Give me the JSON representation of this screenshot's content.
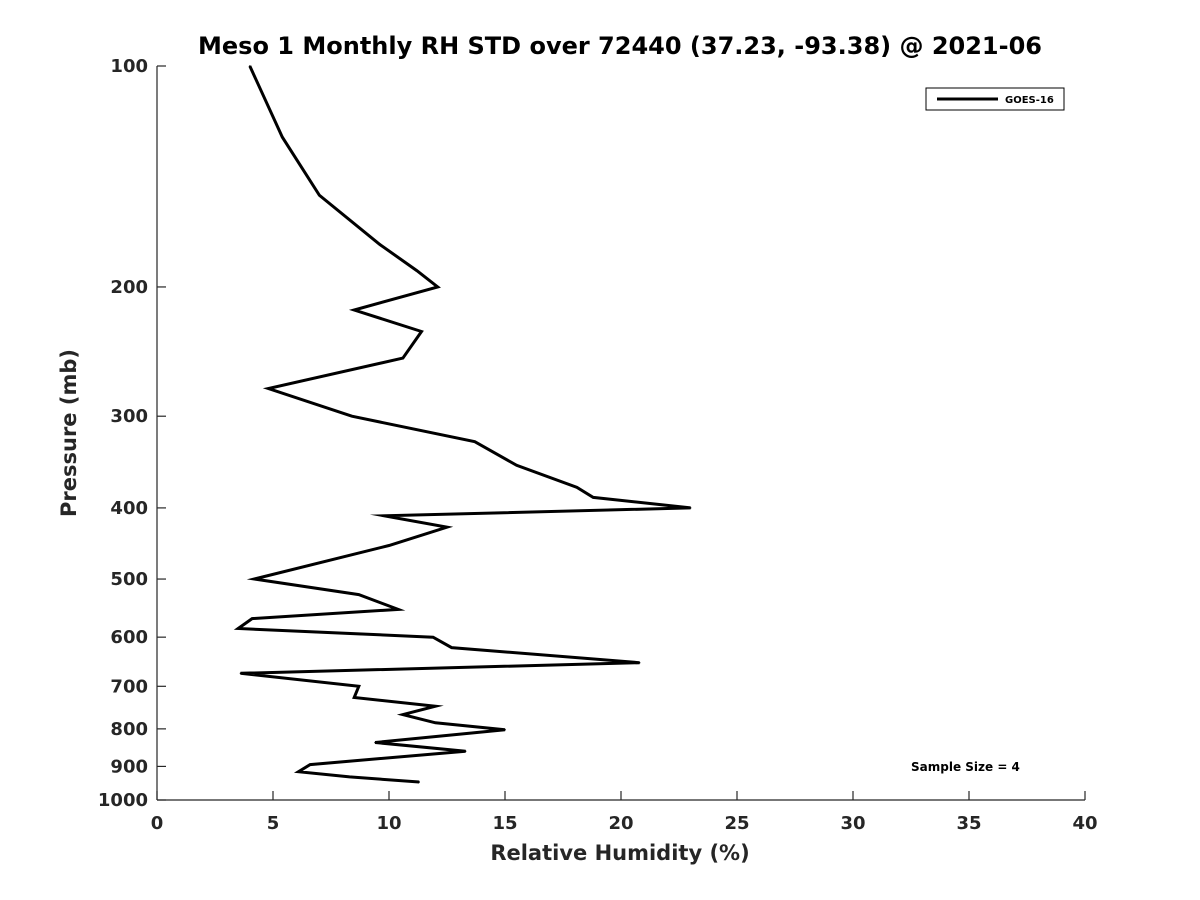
{
  "chart_data": {
    "type": "line",
    "title": "Meso 1 Monthly RH STD over 72440 (37.23, -93.38) @ 2021-06",
    "xlabel": "Relative Humidity (%)",
    "ylabel": "Pressure (mb)",
    "xlim": [
      0,
      40
    ],
    "ylim": [
      100,
      1000
    ],
    "y_scale": "log",
    "y_reversed": true,
    "x_ticks": [
      "0",
      "5",
      "10",
      "15",
      "20",
      "25",
      "30",
      "35",
      "40"
    ],
    "y_ticks": [
      "100",
      "200",
      "300",
      "400",
      "500",
      "600",
      "700",
      "800",
      "900",
      "1000"
    ],
    "grid": false,
    "legend_position": "top-right",
    "annotation": "Sample Size = 4",
    "line_color": "#000000",
    "series": [
      {
        "name": "GOES-16",
        "points": [
          [
            4.0,
            100
          ],
          [
            5.4,
            125
          ],
          [
            7.0,
            150
          ],
          [
            9.6,
            175
          ],
          [
            11.2,
            190
          ],
          [
            12.1,
            200
          ],
          [
            8.5,
            215
          ],
          [
            11.4,
            230
          ],
          [
            10.6,
            250
          ],
          [
            4.8,
            275
          ],
          [
            8.4,
            300
          ],
          [
            13.7,
            325
          ],
          [
            15.5,
            350
          ],
          [
            18.1,
            375
          ],
          [
            18.8,
            387
          ],
          [
            23.0,
            400
          ],
          [
            9.8,
            410
          ],
          [
            12.5,
            425
          ],
          [
            10.0,
            450
          ],
          [
            4.2,
            500
          ],
          [
            8.7,
            525
          ],
          [
            10.4,
            550
          ],
          [
            4.1,
            566
          ],
          [
            3.5,
            584
          ],
          [
            11.9,
            600
          ],
          [
            12.7,
            620
          ],
          [
            20.8,
            650
          ],
          [
            3.6,
            672
          ],
          [
            8.7,
            700
          ],
          [
            8.5,
            725
          ],
          [
            12.0,
            745
          ],
          [
            10.6,
            765
          ],
          [
            12.0,
            785
          ],
          [
            15.0,
            802
          ],
          [
            9.4,
            835
          ],
          [
            13.3,
            858
          ],
          [
            6.6,
            895
          ],
          [
            6.1,
            915
          ],
          [
            8.3,
            930
          ],
          [
            11.3,
            945
          ]
        ]
      }
    ]
  }
}
